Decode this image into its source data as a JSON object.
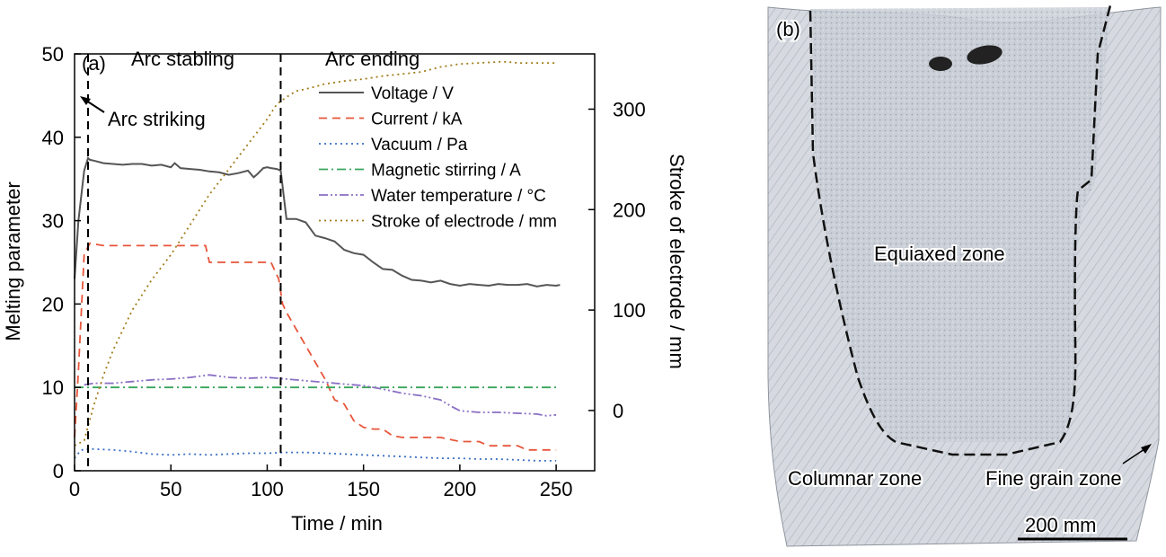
{
  "chart_data": {
    "type": "line",
    "panel_label": "(a)",
    "xlabel": "Time / min",
    "ylabel": "Melting parameter",
    "y2label": "Stroke of electrode / mm",
    "xlim": [
      0,
      270
    ],
    "ylim": [
      0,
      50
    ],
    "y2lim": [
      -60,
      355
    ],
    "x_ticks": [
      0,
      50,
      100,
      150,
      200,
      250
    ],
    "y_ticks": [
      0,
      10,
      20,
      30,
      40,
      50
    ],
    "y2_ticks": [
      0,
      100,
      200,
      300
    ],
    "grid": false,
    "legend_position": "top-right",
    "phase_markers": [
      {
        "x": 7,
        "label": ""
      },
      {
        "x": 107,
        "label": ""
      }
    ],
    "annotations": {
      "arc_stabling": "Arc stabling",
      "arc_ending": "Arc ending",
      "arc_striking": "Arc striking"
    },
    "series": [
      {
        "name": "Voltage / V",
        "axis": "left",
        "color": "#555555",
        "dash": "solid",
        "x": [
          0,
          2,
          5,
          7,
          8,
          10,
          15,
          20,
          25,
          30,
          35,
          40,
          45,
          50,
          52,
          55,
          60,
          65,
          70,
          75,
          80,
          85,
          90,
          93,
          95,
          98,
          100,
          102,
          105,
          107,
          110,
          115,
          120,
          125,
          130,
          135,
          140,
          145,
          150,
          155,
          160,
          165,
          170,
          175,
          180,
          185,
          190,
          195,
          200,
          205,
          210,
          215,
          220,
          225,
          230,
          235,
          240,
          245,
          250,
          252
        ],
        "y": [
          23,
          30,
          36,
          37.5,
          37.3,
          37.2,
          36.9,
          36.8,
          36.7,
          36.8,
          36.8,
          36.6,
          36.7,
          36.4,
          36.9,
          36.3,
          36.2,
          36.1,
          35.9,
          35.8,
          35.5,
          35.7,
          36.0,
          35.2,
          35.6,
          36.3,
          36.4,
          36.3,
          36.2,
          36.0,
          30.2,
          30.2,
          29.8,
          28.2,
          27.9,
          27.5,
          26.5,
          26.1,
          25.9,
          25.0,
          24.2,
          24.1,
          23.4,
          22.9,
          22.8,
          22.6,
          22.8,
          22.4,
          22.2,
          22.4,
          22.3,
          22.2,
          22.4,
          22.3,
          22.3,
          22.4,
          22.1,
          22.3,
          22.2,
          22.3
        ]
      },
      {
        "name": "Current / kA",
        "axis": "left",
        "color": "#e8553a",
        "dash": "dashed",
        "x": [
          0,
          2,
          5,
          8,
          10,
          15,
          20,
          30,
          40,
          50,
          60,
          65,
          68,
          70,
          75,
          80,
          90,
          100,
          102,
          106,
          108,
          110,
          115,
          120,
          125,
          130,
          135,
          140,
          145,
          150,
          155,
          160,
          165,
          170,
          175,
          180,
          190,
          200,
          210,
          215,
          220,
          230,
          235,
          240,
          250
        ],
        "y": [
          4,
          12,
          26,
          27.3,
          27.2,
          27.0,
          27.0,
          27.0,
          27.0,
          27.0,
          27.0,
          27.0,
          27.0,
          25.0,
          25.0,
          25.0,
          25.0,
          25.0,
          25.0,
          23.0,
          20.0,
          19.0,
          17.0,
          15.0,
          13.0,
          11.0,
          8.5,
          8.0,
          6.0,
          5.2,
          5.0,
          5.0,
          4.2,
          4.0,
          4.0,
          4.0,
          4.0,
          3.5,
          3.5,
          3.0,
          3.0,
          3.0,
          2.5,
          2.5,
          2.5
        ]
      },
      {
        "name": "Vacuum / Pa",
        "axis": "left",
        "color": "#3a6fc4",
        "dash": "dotted",
        "x": [
          0,
          3,
          5,
          10,
          20,
          30,
          40,
          50,
          60,
          70,
          80,
          90,
          100,
          110,
          120,
          130,
          140,
          150,
          160,
          170,
          180,
          190,
          200,
          210,
          220,
          230,
          240,
          250
        ],
        "y": [
          1.5,
          2.4,
          2.6,
          2.6,
          2.5,
          2.3,
          2.0,
          1.9,
          2.0,
          1.9,
          2.0,
          2.1,
          2.1,
          2.2,
          2.2,
          2.1,
          2.0,
          1.9,
          1.8,
          1.7,
          1.6,
          1.5,
          1.5,
          1.4,
          1.4,
          1.3,
          1.2,
          1.2
        ]
      },
      {
        "name": "Magnetic stirring / A",
        "axis": "left",
        "color": "#3aa65c",
        "dash": "dashdot",
        "x": [
          0,
          250
        ],
        "y": [
          10,
          10
        ]
      },
      {
        "name": "Water temperature / °C",
        "axis": "left",
        "color": "#8a6fc4",
        "dash": "dashdotdot",
        "x": [
          5,
          10,
          20,
          30,
          40,
          50,
          60,
          70,
          80,
          90,
          100,
          110,
          120,
          130,
          140,
          150,
          160,
          170,
          180,
          190,
          195,
          200,
          210,
          220,
          230,
          240,
          245,
          250
        ],
        "y": [
          10.3,
          10.5,
          10.5,
          10.7,
          10.9,
          11.0,
          11.2,
          11.5,
          11.2,
          11.1,
          11.2,
          11.0,
          10.8,
          10.6,
          10.4,
          10.2,
          9.8,
          9.3,
          9.0,
          8.5,
          7.8,
          7.2,
          7.0,
          7.0,
          6.9,
          6.8,
          6.6,
          6.7
        ]
      },
      {
        "name": "Stroke of electrode / mm",
        "axis": "right",
        "color": "#a07c17",
        "dash": "dotted",
        "x": [
          0,
          5,
          10,
          15,
          20,
          25,
          30,
          40,
          50,
          60,
          70,
          80,
          90,
          100,
          105,
          110,
          115,
          120,
          130,
          140,
          150,
          160,
          170,
          180,
          190,
          200,
          210,
          220,
          225,
          230,
          240,
          250
        ],
        "y": [
          -35,
          -30,
          5,
          35,
          60,
          80,
          100,
          130,
          155,
          185,
          215,
          240,
          265,
          290,
          305,
          312,
          318,
          320,
          325,
          328,
          330,
          333,
          335,
          337,
          342,
          345,
          346,
          347,
          347,
          346,
          346,
          346
        ]
      }
    ]
  },
  "panel_b": {
    "panel_label": "(b)",
    "zones": {
      "equiaxed": "Equiaxed zone",
      "columnar": "Columnar zone",
      "fine_grain": "Fine grain zone"
    },
    "scale_bar": "200 mm"
  }
}
